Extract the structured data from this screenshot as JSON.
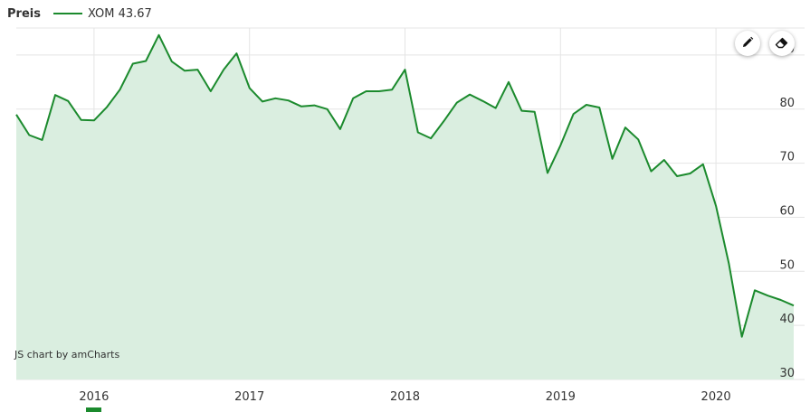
{
  "legend": {
    "title": "Preis",
    "series_label": "XOM 43.67",
    "color": "#1b8a2d"
  },
  "toolbar": {
    "draw_icon": "pencil-icon",
    "erase_icon": "eraser-icon"
  },
  "credit": "JS chart by amCharts",
  "chart_data": {
    "type": "area",
    "title": "",
    "xlabel": "",
    "ylabel": "",
    "ylim": [
      30,
      95
    ],
    "yticks": [
      30,
      40,
      50,
      60,
      70,
      80,
      90
    ],
    "xticks": [
      "2016",
      "2017",
      "2018",
      "2019",
      "2020"
    ],
    "xrange": [
      "2015-07",
      "2020-07"
    ],
    "grid": true,
    "line_color": "#1b8a2d",
    "fill_color": "#daeee0",
    "series": [
      {
        "name": "XOM",
        "points": [
          [
            "2015-07",
            79.0
          ],
          [
            "2015-08",
            75.2
          ],
          [
            "2015-09",
            74.3
          ],
          [
            "2015-10",
            82.6
          ],
          [
            "2015-11",
            81.5
          ],
          [
            "2015-12",
            78.0
          ],
          [
            "2016-01",
            77.9
          ],
          [
            "2016-02",
            80.4
          ],
          [
            "2016-03",
            83.6
          ],
          [
            "2016-04",
            88.4
          ],
          [
            "2016-05",
            88.9
          ],
          [
            "2016-06",
            93.7
          ],
          [
            "2016-07",
            88.8
          ],
          [
            "2016-08",
            87.1
          ],
          [
            "2016-09",
            87.3
          ],
          [
            "2016-10",
            83.3
          ],
          [
            "2016-11",
            87.3
          ],
          [
            "2016-12",
            90.3
          ],
          [
            "2017-01",
            83.9
          ],
          [
            "2017-02",
            81.4
          ],
          [
            "2017-03",
            82.0
          ],
          [
            "2017-04",
            81.6
          ],
          [
            "2017-05",
            80.5
          ],
          [
            "2017-06",
            80.7
          ],
          [
            "2017-07",
            80.0
          ],
          [
            "2017-08",
            76.3
          ],
          [
            "2017-09",
            82.0
          ],
          [
            "2017-10",
            83.3
          ],
          [
            "2017-11",
            83.3
          ],
          [
            "2017-12",
            83.6
          ],
          [
            "2018-01",
            87.3
          ],
          [
            "2018-02",
            75.7
          ],
          [
            "2018-03",
            74.6
          ],
          [
            "2018-04",
            77.8
          ],
          [
            "2018-05",
            81.2
          ],
          [
            "2018-06",
            82.7
          ],
          [
            "2018-07",
            81.5
          ],
          [
            "2018-08",
            80.2
          ],
          [
            "2018-09",
            85.0
          ],
          [
            "2018-10",
            79.7
          ],
          [
            "2018-11",
            79.5
          ],
          [
            "2018-12",
            68.2
          ],
          [
            "2019-01",
            73.3
          ],
          [
            "2019-02",
            79.1
          ],
          [
            "2019-03",
            80.8
          ],
          [
            "2019-04",
            80.3
          ],
          [
            "2019-05",
            70.8
          ],
          [
            "2019-06",
            76.6
          ],
          [
            "2019-07",
            74.4
          ],
          [
            "2019-08",
            68.5
          ],
          [
            "2019-09",
            70.6
          ],
          [
            "2019-10",
            67.6
          ],
          [
            "2019-11",
            68.1
          ],
          [
            "2019-12",
            69.8
          ],
          [
            "2020-01",
            62.1
          ],
          [
            "2020-02",
            51.4
          ],
          [
            "2020-03",
            37.9
          ],
          [
            "2020-04",
            46.5
          ],
          [
            "2020-05",
            45.5
          ],
          [
            "2020-06",
            44.7
          ],
          [
            "2020-07",
            43.67
          ]
        ]
      }
    ]
  }
}
